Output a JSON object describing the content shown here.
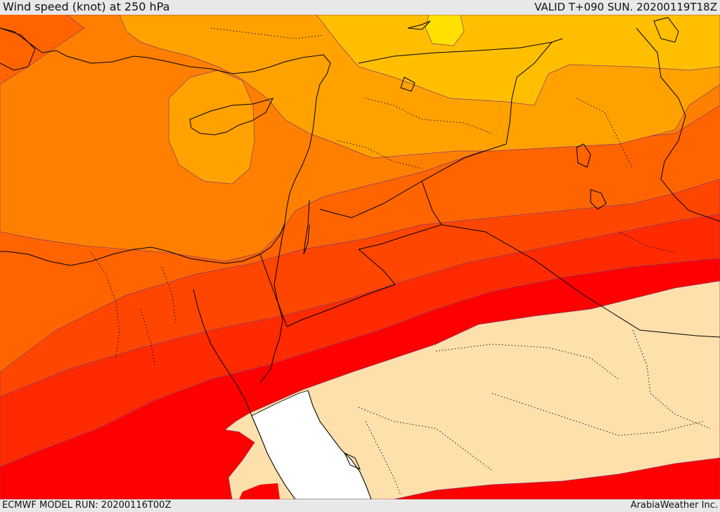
{
  "header": {
    "title": "Wind speed (knot) at 250 hPa",
    "valid_time": "VALID T+090 SUN. 20200119T18Z"
  },
  "footer": {
    "model_run": "ECMWF MODEL RUN: 20200116T00Z",
    "credit": "ArabiaWeather Inc."
  },
  "map": {
    "variable": "wind speed at 250 hPa",
    "colors": {
      "band_lightest": "#ffe000",
      "band_amber": "#ffbf00",
      "band_orange_light": "#ffa200",
      "band_orange": "#ff8000",
      "band_orange_dark": "#ff6400",
      "band_red_orange": "#ff4600",
      "band_red_light": "#ff2a00",
      "band_red": "#ff0000",
      "low_wind_area": "#fde0ac",
      "no_data": "#ffffff",
      "coastline": "#000000",
      "borders": "#000000"
    }
  }
}
